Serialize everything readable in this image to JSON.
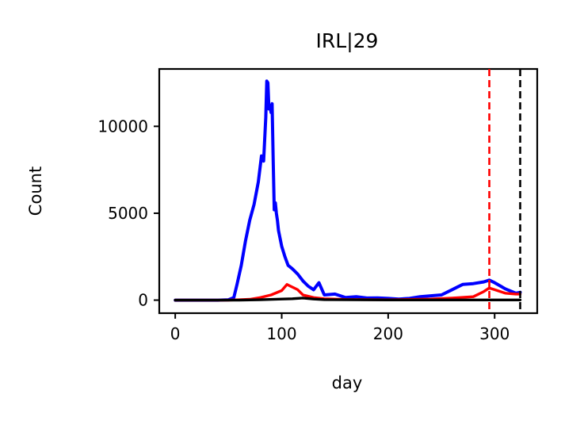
{
  "chart_data": {
    "type": "line",
    "title": "IRL|29",
    "xlabel": "day",
    "ylabel": "Count",
    "xlim": [
      -15,
      340
    ],
    "ylim": [
      -750,
      13300
    ],
    "x_ticks": [
      0,
      100,
      200,
      300
    ],
    "y_ticks": [
      0,
      5000,
      10000
    ],
    "grid": false,
    "vlines": [
      {
        "x": 295,
        "color": "#ff0000",
        "style": "dashed"
      },
      {
        "x": 324,
        "color": "#000000",
        "style": "dashed"
      }
    ],
    "series": [
      {
        "color": "#0000ff",
        "x": [
          0,
          20,
          40,
          50,
          55,
          58,
          62,
          66,
          70,
          74,
          78,
          81,
          83,
          85,
          86,
          87,
          88,
          89,
          90,
          91,
          92,
          93,
          94,
          95,
          96,
          97,
          100,
          103,
          106,
          110,
          115,
          120,
          125,
          130,
          135,
          140,
          150,
          160,
          170,
          180,
          190,
          200,
          210,
          220,
          230,
          240,
          250,
          260,
          265,
          270,
          280,
          290,
          295,
          300,
          310,
          320,
          324
        ],
        "y": [
          0,
          0,
          0,
          20,
          150,
          900,
          2000,
          3400,
          4600,
          5500,
          6800,
          8300,
          8000,
          10500,
          12600,
          12500,
          11000,
          11200,
          10800,
          11300,
          8000,
          5200,
          5600,
          5000,
          4600,
          4000,
          3100,
          2500,
          2000,
          1800,
          1500,
          1100,
          800,
          600,
          1000,
          300,
          350,
          150,
          200,
          120,
          130,
          100,
          60,
          100,
          200,
          250,
          300,
          600,
          750,
          900,
          950,
          1050,
          1150,
          1000,
          650,
          400,
          450
        ]
      },
      {
        "color": "#ff0000",
        "x": [
          0,
          50,
          60,
          70,
          80,
          90,
          100,
          105,
          110,
          115,
          120,
          130,
          140,
          160,
          200,
          240,
          260,
          280,
          290,
          295,
          300,
          310,
          320,
          324
        ],
        "y": [
          0,
          0,
          20,
          50,
          150,
          300,
          550,
          900,
          750,
          600,
          300,
          150,
          80,
          40,
          20,
          60,
          120,
          200,
          500,
          700,
          600,
          400,
          350,
          350
        ]
      },
      {
        "color": "#000000",
        "x": [
          0,
          60,
          80,
          100,
          110,
          120,
          130,
          140,
          200,
          300,
          324
        ],
        "y": [
          0,
          0,
          20,
          60,
          80,
          120,
          60,
          30,
          10,
          10,
          10
        ]
      }
    ]
  }
}
